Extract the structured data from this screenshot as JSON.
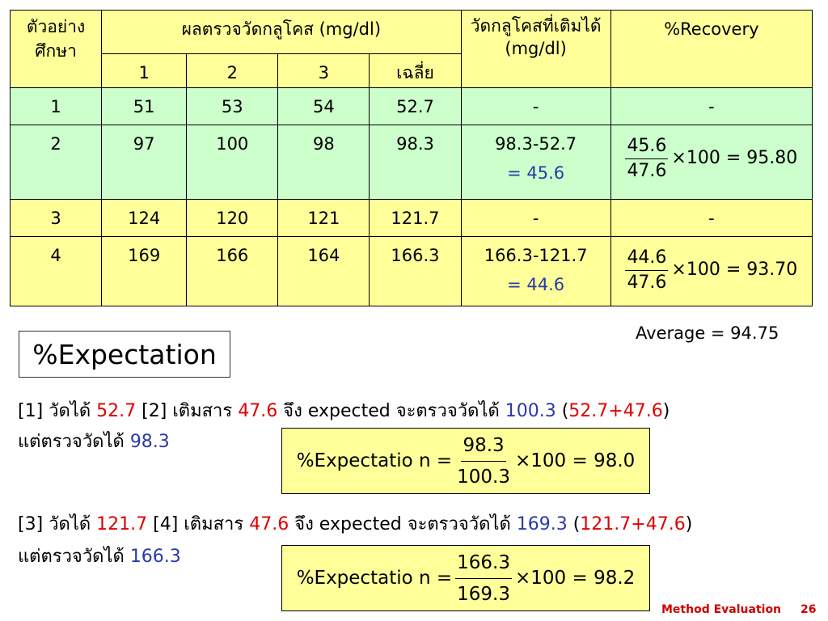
{
  "table": {
    "hdr_sample": "ตัวอย่างศึกษา",
    "hdr_glucose": "ผลตรวจวัดกลูโคส (mg/dl)",
    "hdr_measured": "วัดกลูโคสที่เติมได้ (mg/dl)",
    "hdr_recovery": "%Recovery",
    "sub": [
      "1",
      "2",
      "3",
      "เฉลี่ย"
    ],
    "rows": [
      {
        "sample": "1",
        "v1": "51",
        "v2": "53",
        "v3": "54",
        "avg": "52.7",
        "measured": "-",
        "recovery": "-"
      },
      {
        "sample": "2",
        "v1": "97",
        "v2": "100",
        "v3": "98",
        "avg": "98.3",
        "measured": "98.3-52.7",
        "measured_result": "= 45.6",
        "rec_num": "45.6",
        "rec_den": "47.6",
        "rec_tail": "×100 = 95.80"
      },
      {
        "sample": "3",
        "v1": "124",
        "v2": "120",
        "v3": "121",
        "avg": "121.7",
        "measured": "-",
        "recovery": "-"
      },
      {
        "sample": "4",
        "v1": "169",
        "v2": "166",
        "v3": "164",
        "avg": "166.3",
        "measured": "166.3-121.7",
        "measured_result": "= 44.6",
        "rec_num": "44.6",
        "rec_den": "47.6",
        "rec_tail": "×100 = 93.70"
      }
    ]
  },
  "average_text": "Average = 94.75",
  "expectation_title": "%Expectation",
  "para1": {
    "a": "[1] วัดได้ ",
    "a_val": "52.7",
    "b": " [2] เติมสาร ",
    "b_val": "47.6",
    "c": " จึง expected จะตรวจวัดได้ ",
    "c_val": "100.3",
    "d": " (",
    "d_val": "52.7+47.6",
    "e": ")",
    "line2": "แต่ตรวจวัดได้ ",
    "line2_val": "98.3"
  },
  "formula1": {
    "label": "%Expectatio n =",
    "num": "98.3",
    "den": "100.3",
    "tail": "×100 = 98.0"
  },
  "para2": {
    "a": "[3] วัดได้ ",
    "a_val": "121.7",
    "b": " [4] เติมสาร ",
    "b_val": "47.6",
    "c": " จึง expected จะตรวจวัดได้ ",
    "c_val": "169.3",
    "d": " (",
    "d_val": "121.7+47.6",
    "e": ")",
    "line2": "แต่ตรวจวัดได้ ",
    "line2_val": "166.3"
  },
  "formula2": {
    "label": "%Expectatio n =",
    "num": "166.3",
    "den": "169.3",
    "tail": "×100 = 98.2"
  },
  "footer": {
    "title": "Method Evaluation",
    "page": "26"
  }
}
